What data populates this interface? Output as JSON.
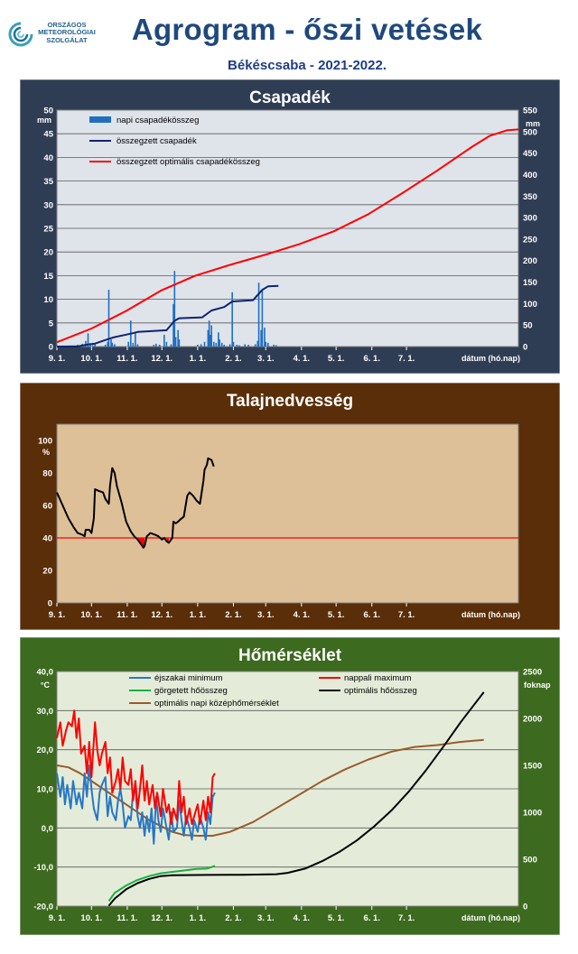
{
  "header": {
    "org_lines": [
      "ORSZÁGOS",
      "METEOROLÓGIAI",
      "SZOLGÁLAT"
    ],
    "title": "Agrogram - őszi vetések",
    "subtitle": "Békéscsaba - 2021-2022."
  },
  "x_axis": {
    "tick_labels": [
      "9. 1.",
      "10. 1.",
      "11. 1.",
      "12. 1.",
      "1. 1.",
      "2. 1.",
      "3. 1.",
      "4. 1.",
      "5. 1.",
      "6. 1.",
      "7. 1."
    ],
    "label": "dátum (hó.nap)"
  },
  "colors": {
    "precip_bg": "#2f3d54",
    "soil_bg": "#5a2e08",
    "temp_bg": "#3c6a1e",
    "bar": "#1f6fc0",
    "cum_precip": "#0c2470",
    "optimal": "#ff0000",
    "soil_line": "#000000",
    "threshold": "#ff0000",
    "tmin": "#2777c4",
    "tmax": "#ff0000",
    "rolling_heat": "#19b040",
    "optimal_heat": "#000000",
    "optimal_mean": "#9a5a2a"
  },
  "chart_data": [
    {
      "type": "bar",
      "title": "Csapadék",
      "y_left_unit": "mm",
      "y_right_unit": "mm",
      "ylim_left": [
        0,
        50
      ],
      "ylim_right": [
        0,
        550
      ],
      "y_left_ticks": [
        "0",
        "5",
        "10",
        "15",
        "20",
        "25",
        "30",
        "35",
        "40",
        "45",
        "50"
      ],
      "y_right_ticks": [
        "0",
        "50",
        "100",
        "150",
        "200",
        "250",
        "300",
        "350",
        "400",
        "450",
        "500",
        "550"
      ],
      "legend": [
        "napi csapadékösszeg",
        "összegzett csapadék",
        "összegzett optimális csapadékösszeg"
      ],
      "daily_precip": [
        [
          18,
          0.4
        ],
        [
          22,
          0.6
        ],
        [
          25,
          1.2
        ],
        [
          27,
          2.8
        ],
        [
          29,
          0.5
        ],
        [
          31,
          0.3
        ],
        [
          33,
          0.6
        ],
        [
          42,
          0.4
        ],
        [
          44,
          1.0
        ],
        [
          45,
          12.0
        ],
        [
          47,
          1.5
        ],
        [
          48,
          0.8
        ],
        [
          50,
          0.5
        ],
        [
          62,
          1.0
        ],
        [
          64,
          5.5
        ],
        [
          66,
          0.8
        ],
        [
          68,
          3.0
        ],
        [
          70,
          0.5
        ],
        [
          84,
          0.4
        ],
        [
          86,
          0.6
        ],
        [
          89,
          0.4
        ],
        [
          93,
          2.5
        ],
        [
          95,
          1.0
        ],
        [
          99,
          0.5
        ],
        [
          101,
          9.0
        ],
        [
          102,
          16.0
        ],
        [
          103,
          2.0
        ],
        [
          105,
          3.5
        ],
        [
          106,
          1.5
        ],
        [
          122,
          0.4
        ],
        [
          125,
          0.5
        ],
        [
          128,
          1.0
        ],
        [
          131,
          3.5
        ],
        [
          132,
          5.5
        ],
        [
          133,
          2.5
        ],
        [
          134,
          4.5
        ],
        [
          136,
          1.0
        ],
        [
          138,
          0.8
        ],
        [
          140,
          3.0
        ],
        [
          141,
          1.5
        ],
        [
          143,
          0.8
        ],
        [
          145,
          0.4
        ],
        [
          150,
          0.5
        ],
        [
          152,
          11.5
        ],
        [
          153,
          1.0
        ],
        [
          156,
          0.4
        ],
        [
          158,
          0.3
        ],
        [
          163,
          0.5
        ],
        [
          166,
          0.4
        ],
        [
          172,
          0.5
        ],
        [
          174,
          1.2
        ],
        [
          175,
          13.5
        ],
        [
          177,
          3.5
        ],
        [
          178,
          12.0
        ],
        [
          180,
          4.0
        ],
        [
          181,
          1.0
        ],
        [
          183,
          0.8
        ],
        [
          188,
          0.4
        ],
        [
          190,
          0.3
        ]
      ],
      "cumulative_precip": [
        [
          0,
          0
        ],
        [
          18,
          0.5
        ],
        [
          27,
          5
        ],
        [
          33,
          7
        ],
        [
          45,
          18
        ],
        [
          50,
          22
        ],
        [
          64,
          30
        ],
        [
          70,
          34
        ],
        [
          95,
          38
        ],
        [
          102,
          60
        ],
        [
          106,
          66
        ],
        [
          126,
          68
        ],
        [
          134,
          84
        ],
        [
          145,
          92
        ],
        [
          152,
          105
        ],
        [
          170,
          108
        ],
        [
          175,
          123
        ],
        [
          178,
          132
        ],
        [
          183,
          140
        ],
        [
          192,
          141
        ]
      ],
      "optimal_precip": [
        [
          0,
          10
        ],
        [
          30,
          42
        ],
        [
          60,
          83
        ],
        [
          90,
          130
        ],
        [
          120,
          165
        ],
        [
          150,
          190
        ],
        [
          180,
          213
        ],
        [
          210,
          238
        ],
        [
          240,
          268
        ],
        [
          270,
          308
        ],
        [
          300,
          358
        ],
        [
          330,
          410
        ],
        [
          360,
          465
        ],
        [
          375,
          490
        ],
        [
          390,
          503
        ],
        [
          400,
          505
        ]
      ]
    },
    {
      "type": "line",
      "title": "Talajnedvesség",
      "y_unit": "%",
      "ylim": [
        0,
        110
      ],
      "y_ticks": [
        "0",
        "20",
        "40",
        "60",
        "80",
        "100"
      ],
      "threshold": 40,
      "soil_moisture": [
        [
          0,
          68
        ],
        [
          5,
          60
        ],
        [
          10,
          52
        ],
        [
          15,
          46
        ],
        [
          18,
          43
        ],
        [
          22,
          42
        ],
        [
          24,
          41
        ],
        [
          25,
          45
        ],
        [
          28,
          45
        ],
        [
          30,
          43
        ],
        [
          32,
          52
        ],
        [
          33,
          70
        ],
        [
          36,
          69
        ],
        [
          40,
          68
        ],
        [
          42,
          64
        ],
        [
          44,
          62
        ],
        [
          45,
          61
        ],
        [
          46,
          72
        ],
        [
          48,
          83
        ],
        [
          50,
          80
        ],
        [
          52,
          72
        ],
        [
          56,
          62
        ],
        [
          60,
          50
        ],
        [
          64,
          44
        ],
        [
          67,
          41
        ],
        [
          70,
          39
        ],
        [
          73,
          36
        ],
        [
          75,
          34
        ],
        [
          76,
          35
        ],
        [
          78,
          41
        ],
        [
          81,
          43
        ],
        [
          85,
          42
        ],
        [
          88,
          41
        ],
        [
          91,
          39
        ],
        [
          93,
          40
        ],
        [
          95,
          38
        ],
        [
          97,
          37
        ],
        [
          100,
          40
        ],
        [
          101,
          50
        ],
        [
          103,
          49
        ],
        [
          105,
          50
        ],
        [
          108,
          52
        ],
        [
          110,
          53
        ],
        [
          113,
          66
        ],
        [
          115,
          68
        ],
        [
          118,
          66
        ],
        [
          121,
          63
        ],
        [
          124,
          61
        ],
        [
          127,
          75
        ],
        [
          128,
          82
        ],
        [
          130,
          85
        ],
        [
          131,
          89
        ],
        [
          134,
          88
        ],
        [
          136,
          84
        ]
      ]
    },
    {
      "type": "line",
      "title": "Hőmérséklet",
      "y_left_unit": "°C",
      "y_right_unit": "foknap",
      "ylim_left": [
        -20,
        40
      ],
      "ylim_right": [
        0,
        2500
      ],
      "y_left_ticks": [
        "-20,0",
        "-10,0",
        "0,0",
        "10,0",
        "20,0",
        "30,0",
        "40,0"
      ],
      "y_right_ticks": [
        "0",
        "500",
        "1000",
        "1500",
        "2000",
        "2500"
      ],
      "legend": [
        "éjszakai minimum",
        "nappali maximum",
        "görgetett hőösszeg",
        "optimális hőösszeg",
        "optimális napi középhőmérséklet"
      ],
      "tmin": [
        [
          0,
          14
        ],
        [
          3,
          8
        ],
        [
          5,
          13
        ],
        [
          7,
          6
        ],
        [
          9,
          11
        ],
        [
          12,
          5
        ],
        [
          14,
          12
        ],
        [
          17,
          6
        ],
        [
          19,
          9
        ],
        [
          22,
          5
        ],
        [
          24,
          14
        ],
        [
          26,
          8
        ],
        [
          28,
          16
        ],
        [
          30,
          10
        ],
        [
          32,
          5
        ],
        [
          35,
          2
        ],
        [
          37,
          9
        ],
        [
          39,
          11
        ],
        [
          42,
          13
        ],
        [
          44,
          3
        ],
        [
          46,
          8
        ],
        [
          48,
          4
        ],
        [
          51,
          2
        ],
        [
          53,
          7
        ],
        [
          55,
          10
        ],
        [
          57,
          6
        ],
        [
          59,
          0
        ],
        [
          62,
          3
        ],
        [
          64,
          2
        ],
        [
          66,
          9
        ],
        [
          68,
          10
        ],
        [
          70,
          3
        ],
        [
          72,
          0
        ],
        [
          74,
          4
        ],
        [
          76,
          -2
        ],
        [
          78,
          3
        ],
        [
          80,
          -1
        ],
        [
          82,
          5
        ],
        [
          84,
          -4
        ],
        [
          86,
          8
        ],
        [
          88,
          2
        ],
        [
          90,
          -1
        ],
        [
          92,
          5
        ],
        [
          95,
          0
        ],
        [
          97,
          -3
        ],
        [
          99,
          4
        ],
        [
          101,
          -1
        ],
        [
          104,
          0
        ],
        [
          106,
          7
        ],
        [
          108,
          2
        ],
        [
          110,
          -2
        ],
        [
          112,
          3
        ],
        [
          115,
          0
        ],
        [
          117,
          -3
        ],
        [
          119,
          2
        ],
        [
          122,
          -1
        ],
        [
          124,
          3
        ],
        [
          127,
          0
        ],
        [
          129,
          -3
        ],
        [
          131,
          4
        ],
        [
          133,
          1
        ],
        [
          135,
          8
        ],
        [
          137,
          9
        ]
      ],
      "tmax": [
        [
          0,
          23
        ],
        [
          3,
          27
        ],
        [
          5,
          21
        ],
        [
          8,
          25
        ],
        [
          10,
          27
        ],
        [
          13,
          26
        ],
        [
          15,
          30
        ],
        [
          17,
          23
        ],
        [
          19,
          28
        ],
        [
          21,
          19
        ],
        [
          24,
          21
        ],
        [
          26,
          14
        ],
        [
          28,
          22
        ],
        [
          30,
          13
        ],
        [
          33,
          27
        ],
        [
          35,
          20
        ],
        [
          37,
          16
        ],
        [
          39,
          19
        ],
        [
          42,
          22
        ],
        [
          44,
          14
        ],
        [
          46,
          18
        ],
        [
          48,
          9
        ],
        [
          51,
          12
        ],
        [
          53,
          15
        ],
        [
          55,
          10
        ],
        [
          57,
          18
        ],
        [
          59,
          12
        ],
        [
          62,
          11
        ],
        [
          64,
          15
        ],
        [
          66,
          7
        ],
        [
          68,
          12
        ],
        [
          70,
          5
        ],
        [
          72,
          10
        ],
        [
          74,
          16
        ],
        [
          76,
          7
        ],
        [
          78,
          12
        ],
        [
          80,
          6
        ],
        [
          83,
          11
        ],
        [
          85,
          5
        ],
        [
          87,
          9
        ],
        [
          90,
          3
        ],
        [
          92,
          10
        ],
        [
          95,
          4
        ],
        [
          97,
          6
        ],
        [
          99,
          1
        ],
        [
          101,
          5
        ],
        [
          104,
          2
        ],
        [
          106,
          12
        ],
        [
          108,
          4
        ],
        [
          110,
          8
        ],
        [
          112,
          1
        ],
        [
          115,
          5
        ],
        [
          117,
          1
        ],
        [
          120,
          4
        ],
        [
          122,
          6
        ],
        [
          124,
          1
        ],
        [
          127,
          7
        ],
        [
          129,
          2
        ],
        [
          131,
          8
        ],
        [
          133,
          4
        ],
        [
          135,
          13
        ],
        [
          137,
          14
        ]
      ],
      "rolling_heat": [
        [
          45,
          55
        ],
        [
          50,
          140
        ],
        [
          60,
          220
        ],
        [
          70,
          280
        ],
        [
          80,
          320
        ],
        [
          90,
          350
        ],
        [
          100,
          365
        ],
        [
          110,
          380
        ],
        [
          120,
          395
        ],
        [
          130,
          400
        ],
        [
          137,
          430
        ]
      ],
      "optimal_heat": [
        [
          45,
          5
        ],
        [
          50,
          80
        ],
        [
          60,
          180
        ],
        [
          70,
          245
        ],
        [
          80,
          290
        ],
        [
          90,
          320
        ],
        [
          100,
          330
        ],
        [
          130,
          333
        ],
        [
          160,
          335
        ],
        [
          190,
          340
        ],
        [
          200,
          355
        ],
        [
          215,
          400
        ],
        [
          230,
          480
        ],
        [
          245,
          580
        ],
        [
          260,
          700
        ],
        [
          275,
          850
        ],
        [
          290,
          1020
        ],
        [
          305,
          1220
        ],
        [
          320,
          1450
        ],
        [
          335,
          1700
        ],
        [
          350,
          1960
        ],
        [
          365,
          2200
        ],
        [
          370,
          2280
        ]
      ],
      "optimal_mean": [
        [
          0,
          16
        ],
        [
          10,
          15.5
        ],
        [
          20,
          14
        ],
        [
          40,
          10
        ],
        [
          60,
          6
        ],
        [
          80,
          2
        ],
        [
          100,
          -1
        ],
        [
          110,
          -1.8
        ],
        [
          122,
          -2
        ],
        [
          135,
          -2
        ],
        [
          150,
          -1
        ],
        [
          170,
          1.5
        ],
        [
          190,
          5
        ],
        [
          210,
          8.5
        ],
        [
          230,
          12
        ],
        [
          250,
          15
        ],
        [
          270,
          17.5
        ],
        [
          290,
          19.5
        ],
        [
          310,
          20.7
        ],
        [
          330,
          21.2
        ],
        [
          350,
          22
        ],
        [
          370,
          22.5
        ]
      ]
    }
  ]
}
